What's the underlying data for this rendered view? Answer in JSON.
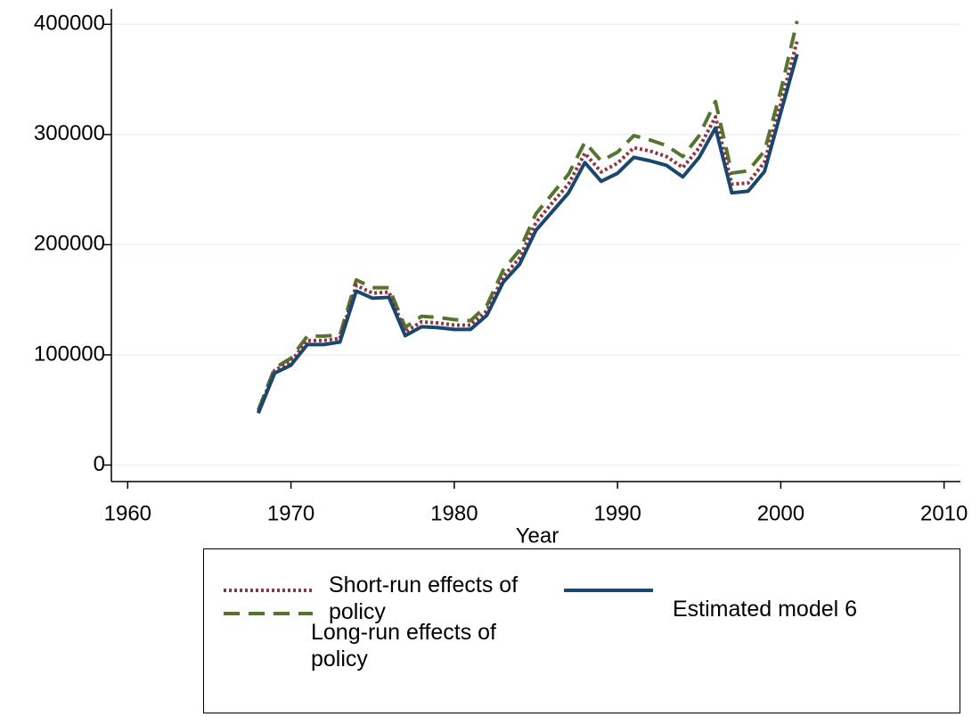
{
  "chart_data": {
    "type": "line",
    "x_label": "Year",
    "x": [
      1968,
      1969,
      1970,
      1971,
      1972,
      1973,
      1974,
      1975,
      1976,
      1977,
      1978,
      1979,
      1980,
      1981,
      1982,
      1983,
      1984,
      1985,
      1986,
      1987,
      1988,
      1989,
      1990,
      1991,
      1992,
      1993,
      1994,
      1995,
      1996,
      1997,
      1998,
      1999,
      2000,
      2001
    ],
    "series": [
      {
        "name": "Long-run effects of policy",
        "color": "#55752f",
        "dash": "dashed",
        "values": [
          50000,
          88000,
          97000,
          117000,
          117000,
          118000,
          168000,
          161000,
          161000,
          125000,
          135000,
          134000,
          132000,
          131000,
          145000,
          177000,
          195000,
          228000,
          246000,
          264000,
          293000,
          276000,
          284000,
          299000,
          295000,
          290000,
          280000,
          299000,
          330000,
          265000,
          267000,
          285000,
          340000,
          403000
        ]
      },
      {
        "name": "Short-run effects of policy",
        "color": "#90353b",
        "dash": "dotted",
        "values": [
          48000,
          86000,
          94000,
          113000,
          113000,
          115000,
          163000,
          156000,
          157000,
          121000,
          130000,
          129000,
          127000,
          127000,
          140000,
          171000,
          188000,
          220000,
          238000,
          255000,
          283000,
          266000,
          274000,
          288000,
          285000,
          280000,
          270000,
          288000,
          316000,
          255000,
          256000,
          275000,
          328000,
          385000
        ]
      },
      {
        "name": "Estimated model 6",
        "color": "#1a476f",
        "dash": "solid",
        "values": [
          47000,
          83400,
          90700,
          109300,
          109300,
          111700,
          157900,
          151400,
          152200,
          117400,
          125500,
          124700,
          123100,
          123100,
          136000,
          166000,
          182200,
          213000,
          230000,
          247000,
          274500,
          257500,
          264800,
          279300,
          276100,
          272000,
          261500,
          279300,
          306000,
          247000,
          248600,
          266400,
          320000,
          373000
        ]
      }
    ],
    "xlim": [
      1959,
      2011
    ],
    "ylim": [
      -15000,
      414000
    ],
    "xticks": [
      1960,
      1970,
      1980,
      1990,
      2000,
      2010
    ],
    "yticks": [
      0,
      100000,
      200000,
      300000,
      400000
    ],
    "grid": true
  }
}
